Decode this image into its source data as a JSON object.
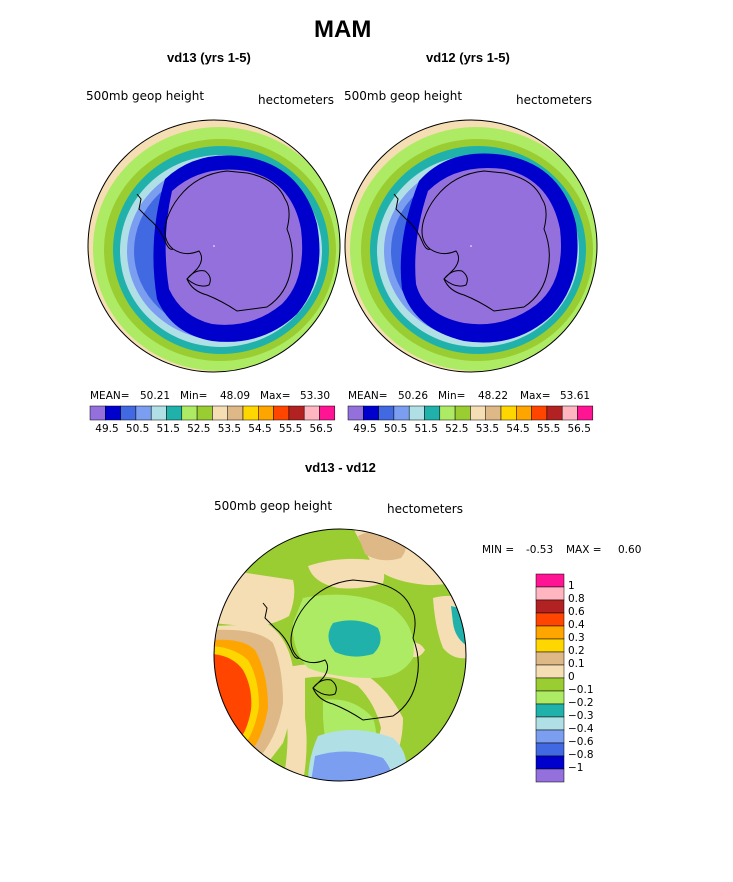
{
  "figure": {
    "title": "MAM",
    "panels": [
      {
        "title": "vd13 (yrs 1-5)",
        "variable": "500mb geop height",
        "units": "hectometers",
        "mean_label": "MEAN=",
        "mean": "50.21",
        "min_label": "Min=",
        "min": "48.09",
        "max_label": "Max=",
        "max": "53.30"
      },
      {
        "title": "vd12 (yrs 1-5)",
        "variable": "500mb geop height",
        "units": "hectometers",
        "mean_label": "MEAN=",
        "mean": "50.26",
        "min_label": "Min=",
        "min": "48.22",
        "max_label": "Max=",
        "max": "53.61"
      }
    ],
    "shared_colorbar": {
      "colors": [
        "#9370DB",
        "#0000CD",
        "#4169E1",
        "#7B9EF0",
        "#B0E0E6",
        "#20B2AA",
        "#ADEB64",
        "#9ACD32",
        "#F5DEB3",
        "#DEB887",
        "#FFD700",
        "#FFA500",
        "#FF4500",
        "#B22222",
        "#FFB6C1",
        "#FF1493"
      ],
      "labels": [
        "49.5",
        "50.5",
        "51.5",
        "52.5",
        "53.5",
        "54.5",
        "55.5",
        "56.5"
      ]
    },
    "diff_panel": {
      "title": "vd13 - vd12",
      "variable": "500mb geop height",
      "units": "hectometers",
      "min_label": "MIN =",
      "min": "-0.53",
      "max_label": "MAX =",
      "max": "0.60",
      "colorbar": {
        "colors": [
          "#FF1493",
          "#FFB6C1",
          "#B22222",
          "#FF4500",
          "#FFA500",
          "#FFD700",
          "#DEB887",
          "#F5DEB3",
          "#9ACD32",
          "#ADEB64",
          "#20B2AA",
          "#B0E0E6",
          "#7B9EF0",
          "#4169E1",
          "#0000CD",
          "#9370DB"
        ],
        "labels": [
          "1",
          "0.8",
          "0.6",
          "0.4",
          "0.3",
          "0.2",
          "0.1",
          "0",
          "−0.1",
          "−0.2",
          "−0.3",
          "−0.4",
          "−0.6",
          "−0.8",
          "−1"
        ]
      }
    }
  }
}
